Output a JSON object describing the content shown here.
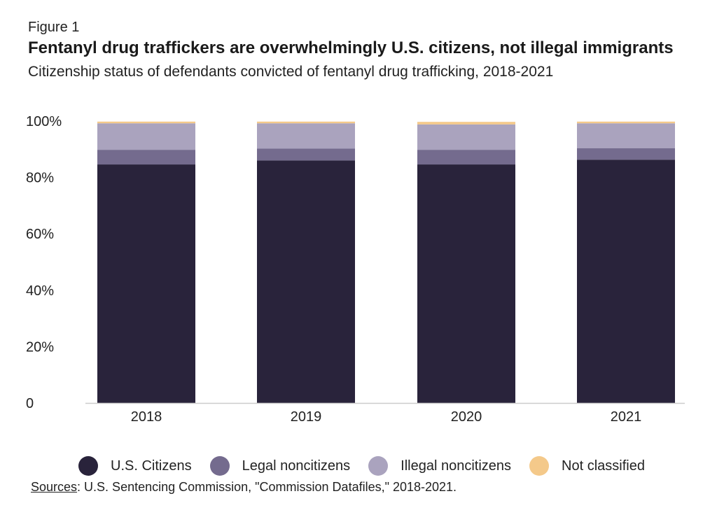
{
  "figure_label": "Figure 1",
  "title": "Fentanyl drug traffickers are overwhelmingly U.S. citizens, not illegal immigrants",
  "subtitle": "Citizenship status of defendants convicted of fentanyl drug trafficking, 2018-2021",
  "source": {
    "label": "Sources",
    "text": ": U.S. Sentencing Commission, \"Commission Datafiles,\" 2018-2021."
  },
  "chart_data": {
    "type": "bar",
    "stacked": true,
    "categories": [
      "2018",
      "2019",
      "2020",
      "2021"
    ],
    "series": [
      {
        "name": "U.S. Citizens",
        "color": "#29233b",
        "values": [
          84.6,
          86.0,
          84.6,
          86.3
        ]
      },
      {
        "name": "Legal noncitizens",
        "color": "#746b8e",
        "values": [
          5.2,
          4.2,
          5.2,
          4.1
        ]
      },
      {
        "name": "Illegal noncitizens",
        "color": "#aaa3be",
        "values": [
          9.4,
          9.0,
          9.0,
          8.8
        ]
      },
      {
        "name": "Not classified",
        "color": "#f4c98a",
        "values": [
          0.6,
          0.6,
          0.9,
          0.6
        ]
      }
    ],
    "y_ticks": [
      {
        "value": 100,
        "label": "100%"
      },
      {
        "value": 80,
        "label": "80%"
      },
      {
        "value": 60,
        "label": "60%"
      },
      {
        "value": 40,
        "label": "40%"
      },
      {
        "value": 20,
        "label": "20%"
      },
      {
        "value": 0,
        "label": "0"
      }
    ],
    "ylim": [
      0,
      104
    ],
    "grid": false,
    "legend_position": "bottom"
  }
}
